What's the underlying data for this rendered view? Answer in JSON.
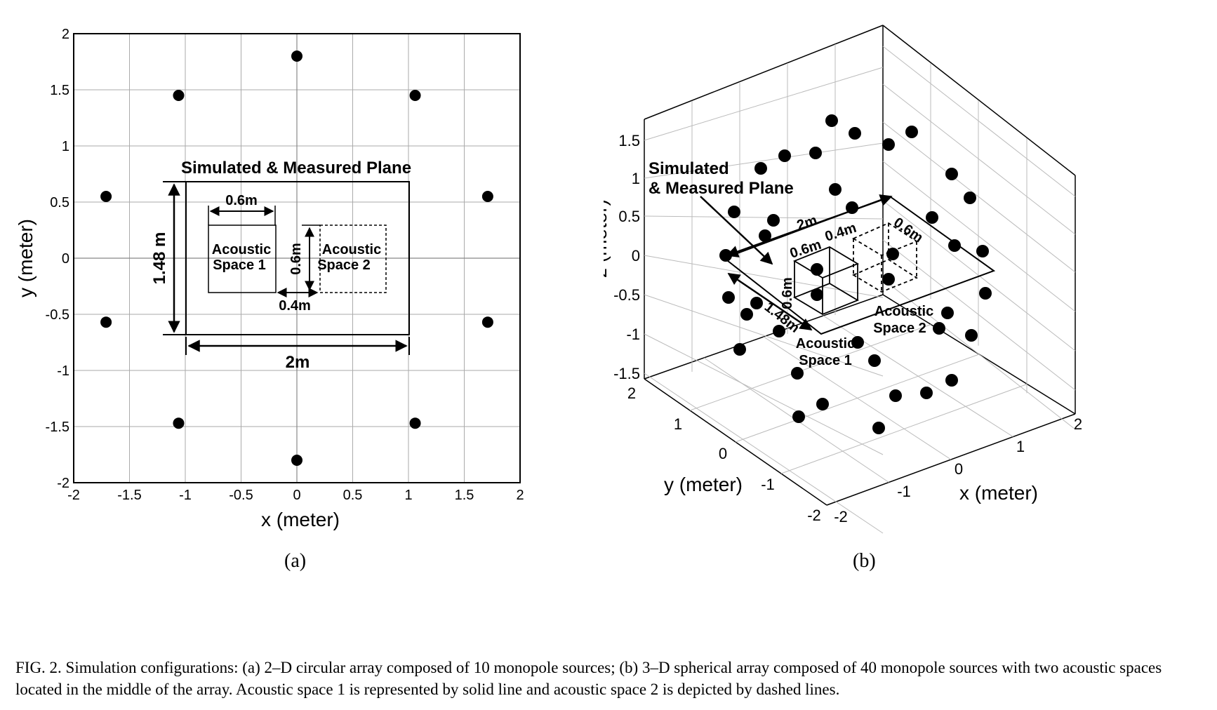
{
  "panel_a": {
    "xlabel": "x (meter)",
    "ylabel": "y (meter)",
    "xticks": [
      "-2",
      "-1.5",
      "-1",
      "-0.5",
      "0",
      "0.5",
      "1",
      "1.5",
      "2"
    ],
    "yticks": [
      "2",
      "1.5",
      "1",
      "0.5",
      "0",
      "-0.5",
      "-1",
      "-1.5",
      "-2"
    ],
    "plane_title": "Simulated & Measured Plane",
    "dim_plane_height": "1.48 m",
    "dim_plane_width": "2m",
    "dim_space_width": "0.6m",
    "dim_space_height": "0.6m",
    "dim_gap": "0.4m",
    "space1_line1": "Acoustic",
    "space1_line2": "Space 1",
    "space2_line1": "Acoustic",
    "space2_line2": "Space 2",
    "sublabel": "(a)"
  },
  "panel_b": {
    "xlabel": "x (meter)",
    "ylabel": "y (meter)",
    "zlabel": "z (meter)",
    "zticks": [
      "1.5",
      "1",
      "0.5",
      "0",
      "-0.5",
      "-1",
      "-1.5"
    ],
    "xticks": [
      "-2",
      "-1",
      "0",
      "1",
      "2"
    ],
    "yticks": [
      "2",
      "1",
      "0",
      "-1",
      "-2"
    ],
    "plane_line1": "Simulated",
    "plane_line2": "& Measured Plane",
    "dim_plane_length": "2m",
    "dim_plane_width": "1.48m",
    "dim_space_a": "0.6m",
    "dim_space_b": "0.6m",
    "dim_space_c": "0.6m",
    "dim_gap": "0.4m",
    "space1_line1": "Acoustic",
    "space1_line2": "Space 1",
    "space2_line1": "Acoustic",
    "space2_line2": "Space 2",
    "sublabel": "(b)"
  },
  "chart_data": [
    {
      "type": "scatter",
      "xlabel": "x (meter)",
      "ylabel": "y (meter)",
      "xlim": [
        -2,
        2
      ],
      "ylim": [
        -2,
        2
      ],
      "grid": true,
      "points": [
        {
          "x": 0,
          "y": 1.8
        },
        {
          "x": -1.06,
          "y": 1.45
        },
        {
          "x": 1.06,
          "y": 1.45
        },
        {
          "x": -1.71,
          "y": 0.55
        },
        {
          "x": 1.71,
          "y": 0.55
        },
        {
          "x": -1.71,
          "y": -0.57
        },
        {
          "x": 1.71,
          "y": -0.57
        },
        {
          "x": -1.06,
          "y": -1.47
        },
        {
          "x": 1.06,
          "y": -1.47
        },
        {
          "x": 0,
          "y": -1.8
        }
      ]
    },
    {
      "type": "scatter",
      "xlabel": "x (meter)",
      "ylabel": "y (meter)",
      "zlabel": "z (meter)",
      "xlim": [
        -2,
        2
      ],
      "ylim": [
        -2,
        2
      ],
      "zlim": [
        -1.5,
        1.5
      ],
      "grid": true,
      "note_points": 40
    }
  ],
  "caption": "FIG. 2. Simulation configurations: (a) 2–D circular array composed of 10 monopole sources; (b) 3–D spherical array composed of 40 monopole sources with two acoustic spaces located in the middle of the array. Acoustic space 1 is represented by solid line and acoustic space 2 is depicted by dashed lines."
}
